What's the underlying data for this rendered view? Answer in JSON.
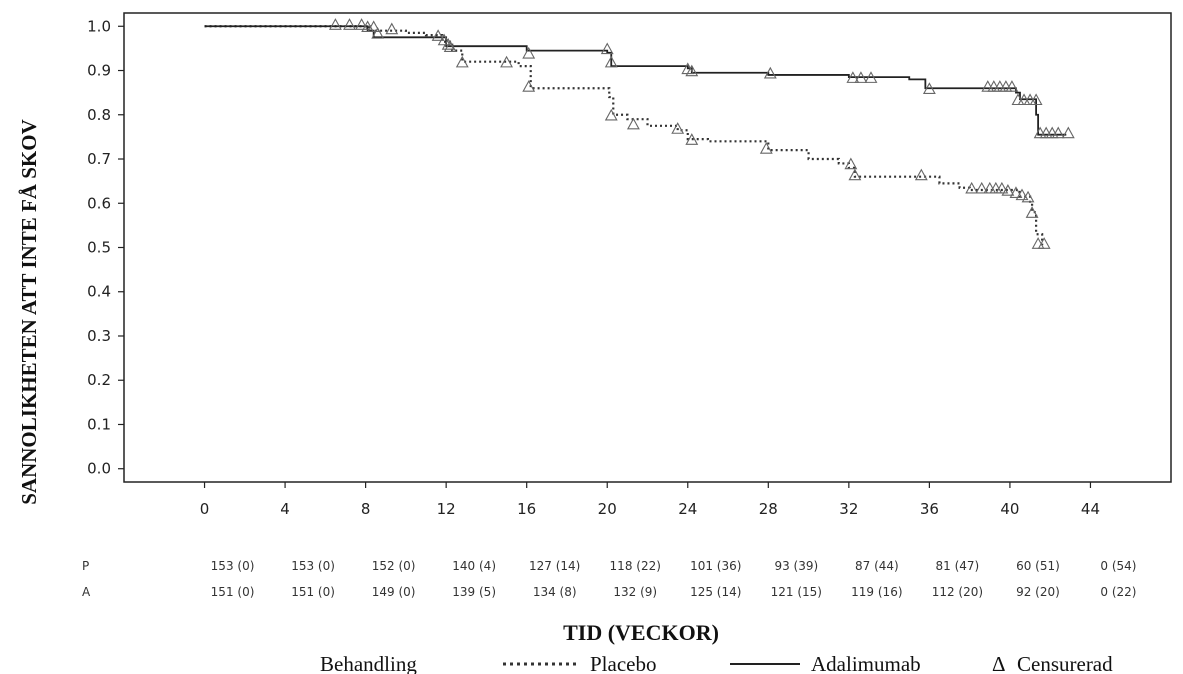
{
  "chart_data": {
    "type": "line",
    "ylabel": "SANNOLIKHETEN ATT INTE FÅ SKOV",
    "xlabel": "TID (VECKOR)",
    "xlim": [
      -4,
      48
    ],
    "ylim": [
      -0.03,
      1.03
    ],
    "x_ticks": [
      "0",
      "4",
      "8",
      "12",
      "16",
      "20",
      "24",
      "28",
      "32",
      "36",
      "40",
      "44"
    ],
    "y_ticks": [
      "0.0",
      "0.1",
      "0.2",
      "0.3",
      "0.4",
      "0.5",
      "0.6",
      "0.7",
      "0.8",
      "0.9",
      "1.0"
    ],
    "grid": false,
    "series": [
      {
        "name": "Placebo",
        "style": "dotted",
        "color": "#333333",
        "points": [
          [
            0,
            1.0
          ],
          [
            8,
            1.0
          ],
          [
            8.2,
            0.99
          ],
          [
            9,
            0.99
          ],
          [
            10,
            0.985
          ],
          [
            11,
            0.98
          ],
          [
            11.8,
            0.965
          ],
          [
            12.3,
            0.945
          ],
          [
            12.8,
            0.92
          ],
          [
            15,
            0.92
          ],
          [
            15.6,
            0.91
          ],
          [
            16.2,
            0.86
          ],
          [
            19.5,
            0.86
          ],
          [
            20.1,
            0.84
          ],
          [
            20.3,
            0.8
          ],
          [
            21,
            0.79
          ],
          [
            22,
            0.775
          ],
          [
            23.5,
            0.765
          ],
          [
            24,
            0.745
          ],
          [
            25,
            0.74
          ],
          [
            27,
            0.74
          ],
          [
            28,
            0.72
          ],
          [
            30,
            0.7
          ],
          [
            31.5,
            0.69
          ],
          [
            32,
            0.68
          ],
          [
            32.3,
            0.66
          ],
          [
            35,
            0.66
          ],
          [
            36.5,
            0.645
          ],
          [
            37.5,
            0.635
          ],
          [
            38,
            0.63
          ],
          [
            39.5,
            0.63
          ],
          [
            40.5,
            0.615
          ],
          [
            41,
            0.6
          ],
          [
            41.1,
            0.58
          ],
          [
            41.3,
            0.53
          ],
          [
            41.6,
            0.505
          ]
        ],
        "censored": [
          [
            6.5,
            1.0
          ],
          [
            7.2,
            1.0
          ],
          [
            7.8,
            1.0
          ],
          [
            8.4,
            0.995
          ],
          [
            9.3,
            0.99
          ],
          [
            11.9,
            0.965
          ],
          [
            12.2,
            0.95
          ],
          [
            12.8,
            0.915
          ],
          [
            15,
            0.915
          ],
          [
            16.1,
            0.86
          ],
          [
            20.2,
            0.795
          ],
          [
            21.3,
            0.775
          ],
          [
            23.5,
            0.765
          ],
          [
            24.2,
            0.74
          ],
          [
            27.9,
            0.72
          ],
          [
            32.1,
            0.685
          ],
          [
            32.3,
            0.66
          ],
          [
            35.6,
            0.66
          ],
          [
            38.1,
            0.63
          ],
          [
            38.6,
            0.63
          ],
          [
            39,
            0.63
          ],
          [
            39.3,
            0.63
          ],
          [
            39.6,
            0.63
          ],
          [
            39.9,
            0.625
          ],
          [
            40.3,
            0.62
          ],
          [
            40.6,
            0.615
          ],
          [
            40.9,
            0.61
          ],
          [
            41.1,
            0.575
          ],
          [
            41.4,
            0.505
          ],
          [
            41.7,
            0.505
          ]
        ]
      },
      {
        "name": "Adalimumab",
        "style": "solid",
        "color": "#222222",
        "points": [
          [
            0,
            1.0
          ],
          [
            8,
            1.0
          ],
          [
            8.1,
            0.99
          ],
          [
            8.4,
            0.975
          ],
          [
            11.5,
            0.975
          ],
          [
            12,
            0.955
          ],
          [
            15.5,
            0.955
          ],
          [
            16,
            0.945
          ],
          [
            20,
            0.94
          ],
          [
            20.2,
            0.91
          ],
          [
            24,
            0.905
          ],
          [
            24.2,
            0.895
          ],
          [
            28,
            0.89
          ],
          [
            32,
            0.885
          ],
          [
            35,
            0.88
          ],
          [
            35.8,
            0.86
          ],
          [
            40,
            0.86
          ],
          [
            40.3,
            0.85
          ],
          [
            40.5,
            0.835
          ],
          [
            41.2,
            0.835
          ],
          [
            41.3,
            0.8
          ],
          [
            41.4,
            0.755
          ],
          [
            42.8,
            0.755
          ]
        ],
        "censored": [
          [
            8.1,
            0.995
          ],
          [
            8.6,
            0.98
          ],
          [
            11.6,
            0.975
          ],
          [
            12.1,
            0.955
          ],
          [
            16.1,
            0.935
          ],
          [
            20,
            0.945
          ],
          [
            20.2,
            0.915
          ],
          [
            24,
            0.9
          ],
          [
            24.2,
            0.895
          ],
          [
            28.1,
            0.89
          ],
          [
            32.2,
            0.88
          ],
          [
            32.6,
            0.88
          ],
          [
            33.1,
            0.88
          ],
          [
            36,
            0.855
          ],
          [
            38.9,
            0.86
          ],
          [
            39.2,
            0.86
          ],
          [
            39.5,
            0.86
          ],
          [
            39.8,
            0.86
          ],
          [
            40.1,
            0.86
          ],
          [
            40.4,
            0.83
          ],
          [
            40.7,
            0.83
          ],
          [
            41,
            0.83
          ],
          [
            41.3,
            0.83
          ],
          [
            41.5,
            0.755
          ],
          [
            41.8,
            0.755
          ],
          [
            42.1,
            0.755
          ],
          [
            42.4,
            0.755
          ],
          [
            42.9,
            0.755
          ]
        ]
      }
    ],
    "risk_table": {
      "rows": [
        {
          "label": "P",
          "values": [
            "153 (0)",
            "153 (0)",
            "152 (0)",
            "140 (4)",
            "127 (14)",
            "118 (22)",
            "101 (36)",
            "93 (39)",
            "87 (44)",
            "81 (47)",
            "60 (51)",
            "0 (54)"
          ]
        },
        {
          "label": "A",
          "values": [
            "151 (0)",
            "151 (0)",
            "149 (0)",
            "139 (5)",
            "134 (8)",
            "132 (9)",
            "125 (14)",
            "121 (15)",
            "119 (16)",
            "112 (20)",
            "92 (20)",
            "0 (22)"
          ]
        }
      ]
    },
    "legend": {
      "title": "Behandling",
      "placebo": "Placebo",
      "adalimumab": "Adalimumab",
      "censored_symbol": "Δ",
      "censored": "Censurerad",
      "placement": "bottom"
    }
  }
}
